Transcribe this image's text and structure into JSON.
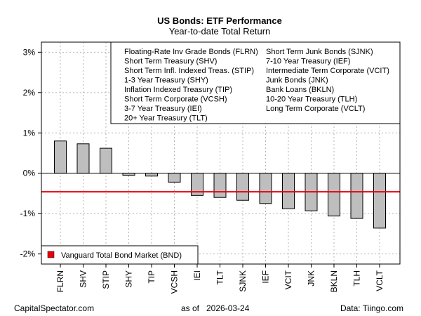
{
  "chart_data": {
    "type": "bar",
    "title": "US Bonds: ETF Performance",
    "subtitle": "Year-to-date Total Return",
    "categories": [
      "FLRN",
      "SHV",
      "STIP",
      "SHY",
      "TIP",
      "VCSH",
      "IEI",
      "TLT",
      "SJNK",
      "IEF",
      "VCIT",
      "JNK",
      "BKLN",
      "TLH",
      "VCLT"
    ],
    "values": [
      0.8,
      0.73,
      0.62,
      -0.05,
      -0.07,
      -0.22,
      -0.55,
      -0.6,
      -0.67,
      -0.75,
      -0.88,
      -0.93,
      -1.06,
      -1.12,
      -1.36
    ],
    "ylim": [
      -2.25,
      3.25
    ],
    "yticks": [
      -2,
      -1,
      0,
      1,
      2,
      3
    ],
    "ytick_labels": [
      "-2%",
      "-1%",
      "0%",
      "1%",
      "2%",
      "3%"
    ],
    "bar_color": "#bebebe",
    "reference_line": {
      "value": -0.46,
      "label": "Vanguard Total Bond Market (BND)",
      "color": "#e8000b"
    },
    "legend_entries_col1": [
      "Floating-Rate Inv Grade Bonds (FLRN)",
      "Short Term Treasury (SHV)",
      "Short Term Infl. Indexed Treas. (STIP)",
      "1-3 Year Treasury (SHY)",
      "Inflation Indexed Treasury (TIP)",
      "Short Term Corporate (VCSH)",
      "3-7 Year Treasury (IEI)",
      "20+ Year Treasury (TLT)"
    ],
    "legend_entries_col2": [
      "Short Term Junk Bonds (SJNK)",
      "7-10 Year Treasury (IEF)",
      "Intermediate Term Corporate (VCIT)",
      "Junk Bonds (JNK)",
      "Bank Loans (BKLN)",
      "10-20 Year Treasury (TLH)",
      "Long Term Corporate (VCLT)"
    ],
    "grid": true,
    "legend_position": "top-right"
  },
  "footer": {
    "left": "CapitalSpectator.com",
    "center_prefix": "as of",
    "date": "2026-03-24",
    "right": "Data: Tiingo.com"
  }
}
